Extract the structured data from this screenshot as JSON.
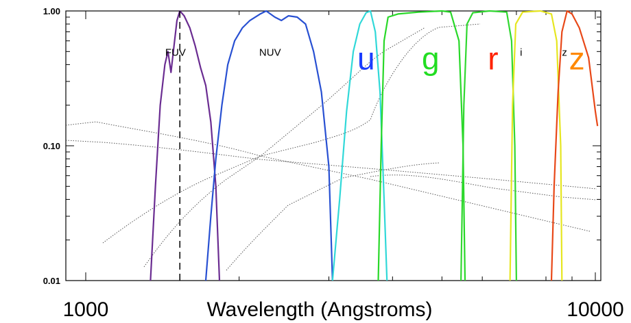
{
  "chart_data": {
    "type": "line",
    "title": "",
    "xlabel": "Wavelength (Angstroms)",
    "ylabel": "",
    "xscale": "log",
    "yscale": "log",
    "xlim": [
      1000,
      10000
    ],
    "ylim": [
      0.01,
      1.0
    ],
    "x_tick_labels": [
      {
        "x": 1000,
        "label": "1000"
      },
      {
        "x": 10000,
        "label": "10000"
      }
    ],
    "y_tick_labels": [
      {
        "y": 1.0,
        "label": "1.00"
      },
      {
        "y": 0.1,
        "label": "0.10"
      },
      {
        "y": 0.01,
        "label": "0.01"
      }
    ],
    "band_labels": [
      {
        "text": "FUV",
        "x": 1500,
        "y": 0.5,
        "color": "#000000",
        "style": "small"
      },
      {
        "text": "NUV",
        "x": 2300,
        "y": 0.5,
        "color": "#000000",
        "style": "small"
      },
      {
        "text": "u",
        "x": 3550,
        "y": 0.5,
        "color": "#1a3cff",
        "style": "big"
      },
      {
        "text": "g",
        "x": 4750,
        "y": 0.5,
        "color": "#22dd22",
        "style": "big"
      },
      {
        "text": "r",
        "x": 6300,
        "y": 0.5,
        "color": "#ff2200",
        "style": "big"
      },
      {
        "text": "i",
        "x": 7150,
        "y": 0.5,
        "color": "#000000",
        "style": "small"
      },
      {
        "text": "z",
        "x": 8700,
        "y": 0.5,
        "color": "#000000",
        "style": "small"
      },
      {
        "text": "z",
        "x": 9200,
        "y": 0.5,
        "color": "#ff8800",
        "style": "big"
      }
    ],
    "reference_line": {
      "x": 1530,
      "style": "dashed"
    },
    "series": [
      {
        "color": "#6a2c91",
        "points": [
          [
            1340,
            0.01
          ],
          [
            1370,
            0.05
          ],
          [
            1400,
            0.2
          ],
          [
            1430,
            0.4
          ],
          [
            1450,
            0.5
          ],
          [
            1470,
            0.35
          ],
          [
            1490,
            0.55
          ],
          [
            1510,
            0.85
          ],
          [
            1530,
            1.0
          ],
          [
            1560,
            0.92
          ],
          [
            1600,
            0.75
          ],
          [
            1640,
            0.55
          ],
          [
            1680,
            0.38
          ],
          [
            1720,
            0.28
          ],
          [
            1760,
            0.15
          ],
          [
            1800,
            0.05
          ],
          [
            1830,
            0.01
          ]
        ]
      },
      {
        "color": "#2850d2",
        "points": [
          [
            1720,
            0.01
          ],
          [
            1760,
            0.03
          ],
          [
            1800,
            0.08
          ],
          [
            1850,
            0.2
          ],
          [
            1900,
            0.4
          ],
          [
            1960,
            0.6
          ],
          [
            2030,
            0.75
          ],
          [
            2100,
            0.85
          ],
          [
            2200,
            0.95
          ],
          [
            2260,
            1.0
          ],
          [
            2350,
            0.9
          ],
          [
            2420,
            0.85
          ],
          [
            2500,
            0.92
          ],
          [
            2600,
            0.9
          ],
          [
            2700,
            0.8
          ],
          [
            2800,
            0.5
          ],
          [
            2900,
            0.25
          ],
          [
            3000,
            0.07
          ],
          [
            3050,
            0.01
          ]
        ]
      },
      {
        "color": "#30d8d8",
        "points": [
          [
            3050,
            0.01
          ],
          [
            3150,
            0.04
          ],
          [
            3250,
            0.18
          ],
          [
            3350,
            0.5
          ],
          [
            3450,
            0.8
          ],
          [
            3550,
            0.97
          ],
          [
            3620,
            1.0
          ],
          [
            3700,
            0.7
          ],
          [
            3780,
            0.25
          ],
          [
            3850,
            0.04
          ],
          [
            3900,
            0.01
          ]
        ]
      },
      {
        "color": "#28d828",
        "points": [
          [
            3750,
            0.01
          ],
          [
            3800,
            0.1
          ],
          [
            3850,
            0.6
          ],
          [
            3920,
            0.9
          ],
          [
            4100,
            0.95
          ],
          [
            4500,
            0.98
          ],
          [
            5000,
            1.0
          ],
          [
            5200,
            0.98
          ],
          [
            5400,
            0.6
          ],
          [
            5500,
            0.1
          ],
          [
            5550,
            0.01
          ]
        ]
      },
      {
        "color": "#30d830",
        "points": [
          [
            5450,
            0.01
          ],
          [
            5520,
            0.2
          ],
          [
            5600,
            0.8
          ],
          [
            5750,
            0.97
          ],
          [
            6200,
            1.0
          ],
          [
            6700,
            0.98
          ],
          [
            6850,
            0.6
          ],
          [
            6950,
            0.1
          ],
          [
            7000,
            0.01
          ]
        ]
      },
      {
        "color": "#e6e620",
        "points": [
          [
            6800,
            0.01
          ],
          [
            6880,
            0.2
          ],
          [
            6980,
            0.8
          ],
          [
            7200,
            0.98
          ],
          [
            7800,
            1.0
          ],
          [
            8200,
            0.95
          ],
          [
            8400,
            0.6
          ],
          [
            8550,
            0.1
          ],
          [
            8600,
            0.01
          ]
        ]
      },
      {
        "color": "#e84818",
        "points": [
          [
            8200,
            0.01
          ],
          [
            8300,
            0.05
          ],
          [
            8450,
            0.25
          ],
          [
            8600,
            0.7
          ],
          [
            8800,
            1.0
          ],
          [
            9000,
            0.95
          ],
          [
            9300,
            0.75
          ],
          [
            9700,
            0.45
          ],
          [
            10000,
            0.18
          ],
          [
            10100,
            0.14
          ]
        ]
      }
    ]
  }
}
